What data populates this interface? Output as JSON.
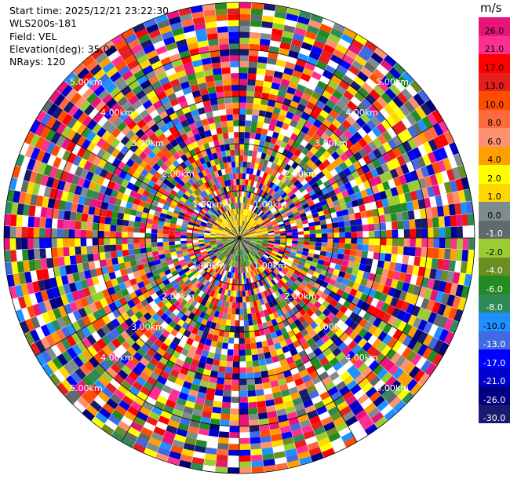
{
  "info": {
    "start_time": "Start time: 2025/12/21 23:22:30",
    "instrument": "WLS200s-181",
    "field": "Field: VEL",
    "elevation": "Elevation(deg): 35.00",
    "nrays": "NRays: 120"
  },
  "colorbar": {
    "unit": "m/s",
    "levels": [
      {
        "label": "26.0",
        "color": "#e8147a"
      },
      {
        "label": "21.0",
        "color": "#ff2f92"
      },
      {
        "label": "17.0",
        "color": "#ff0000"
      },
      {
        "label": "13.0",
        "color": "#e61e1e"
      },
      {
        "label": "10.0",
        "color": "#ff4d00"
      },
      {
        "label": "8.0",
        "color": "#ff6a3d"
      },
      {
        "label": "6.0",
        "color": "#ff9070"
      },
      {
        "label": "4.0",
        "color": "#ff9f00"
      },
      {
        "label": "2.0",
        "color": "#ffff00"
      },
      {
        "label": "1.0",
        "color": "#ffd700"
      },
      {
        "label": "0.0",
        "color": "#7f8c8d"
      },
      {
        "label": "-1.0",
        "color": "#5f6a6a"
      },
      {
        "label": "-2.0",
        "color": "#9acd32"
      },
      {
        "label": "-4.0",
        "color": "#6b8e23"
      },
      {
        "label": "-6.0",
        "color": "#228b22"
      },
      {
        "label": "-8.0",
        "color": "#2e8b57"
      },
      {
        "label": "-10.0",
        "color": "#1e90ff"
      },
      {
        "label": "-13.0",
        "color": "#4169e1"
      },
      {
        "label": "-17.0",
        "color": "#0000ff"
      },
      {
        "label": "-21.0",
        "color": "#0000cd"
      },
      {
        "label": "-26.0",
        "color": "#000080"
      },
      {
        "label": "-30.0",
        "color": "#191970"
      }
    ]
  },
  "chart_data": {
    "type": "heatmap",
    "field": "VEL",
    "unit": "m/s",
    "elevation_deg": 35.0,
    "n_rays": 120,
    "ring_labels": [
      "1.00km",
      "2.00km",
      "3.00km",
      "4.00km",
      "5.00km"
    ]
  }
}
